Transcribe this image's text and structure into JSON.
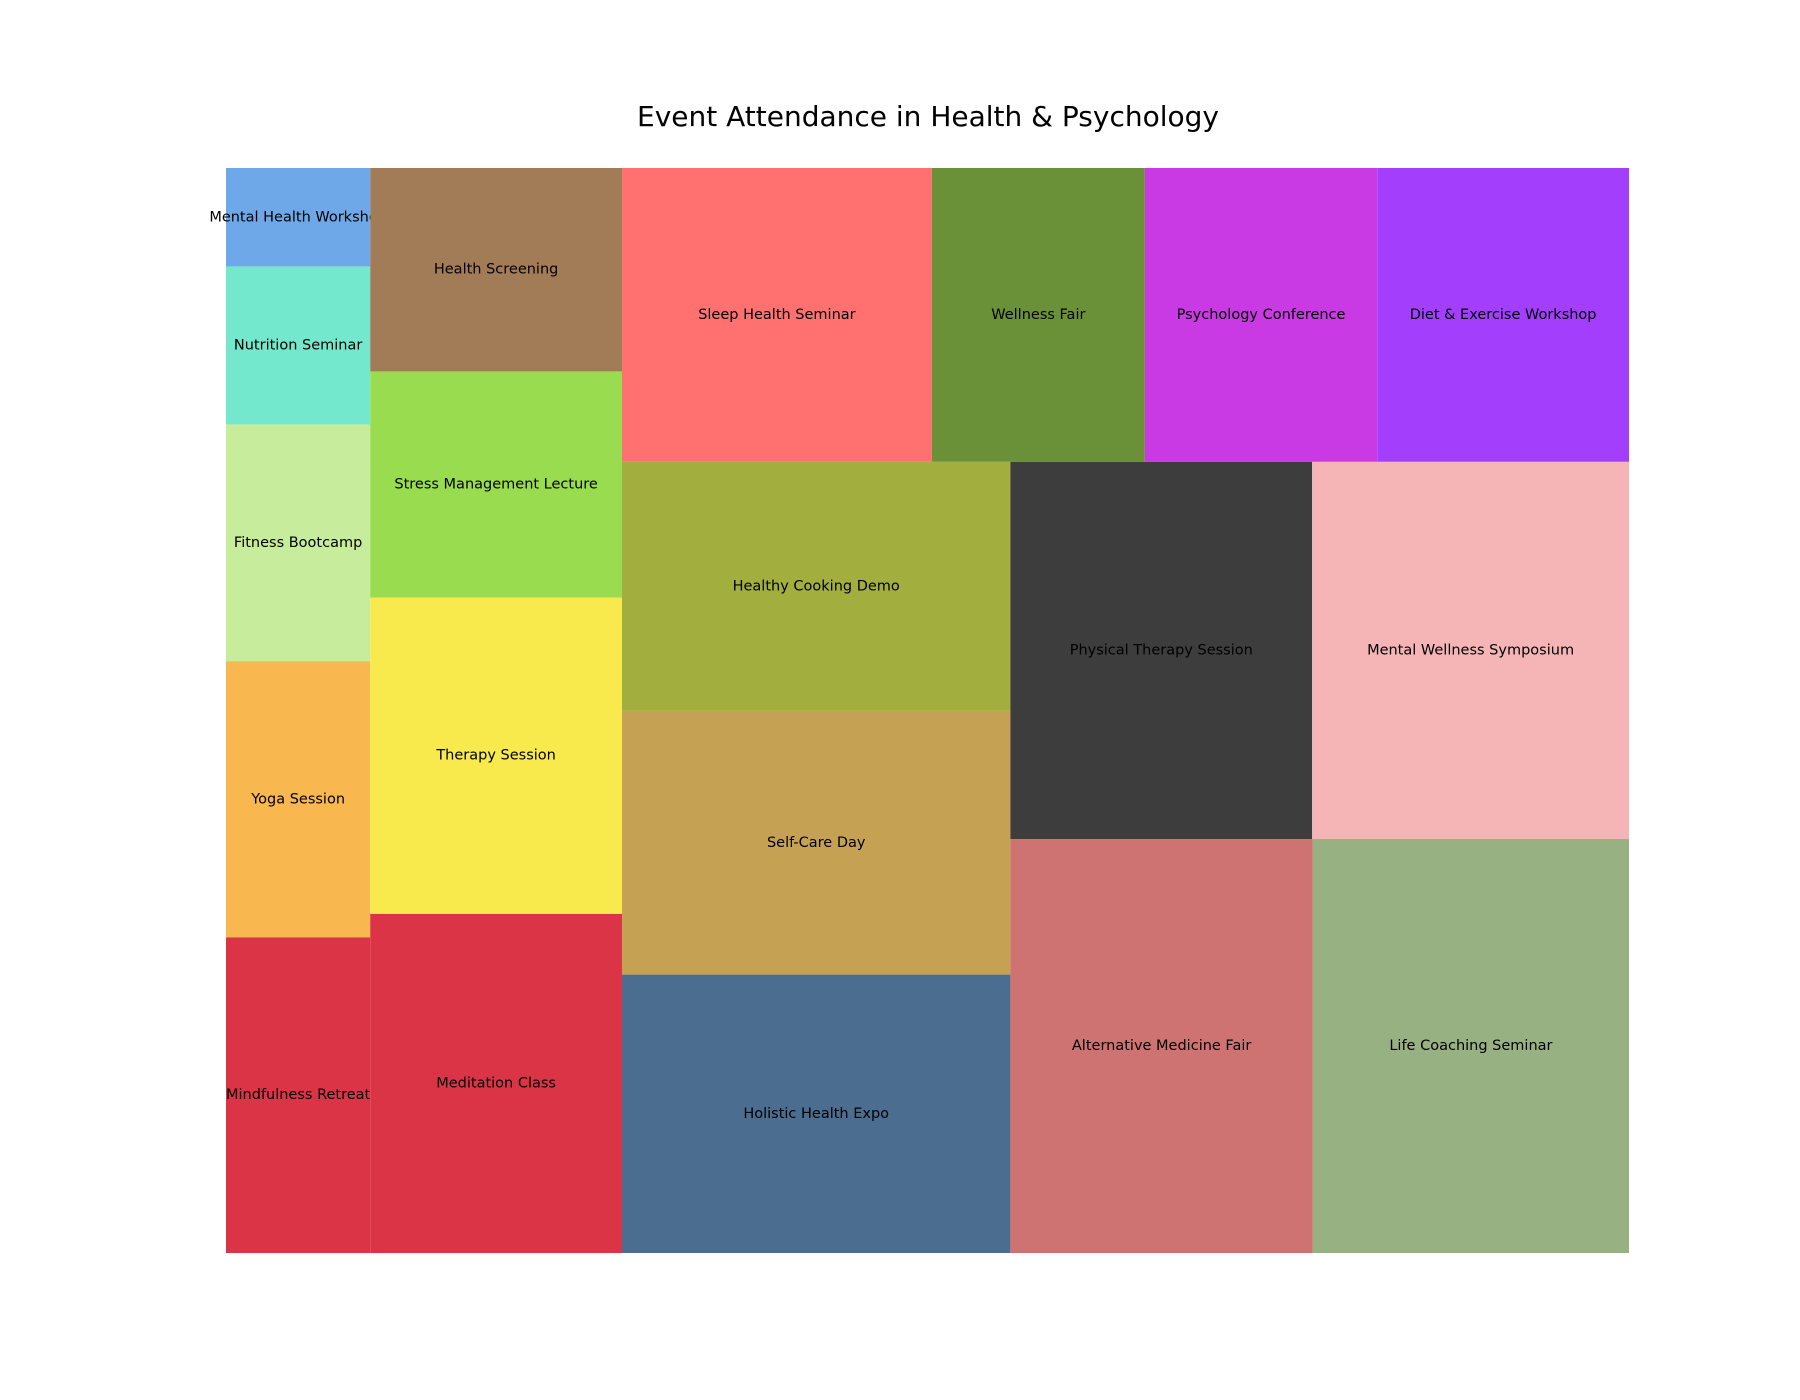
{
  "chart_data": {
    "type": "treemap",
    "title": "Event Attendance in Health & Psychology",
    "legend": "none",
    "grid": false,
    "items": [
      {
        "name": "Mental Health Workshop",
        "value": 150,
        "color": "#6fa8e8"
      },
      {
        "name": "Nutrition Seminar",
        "value": 240,
        "color": "#74e8cc"
      },
      {
        "name": "Fitness Bootcamp",
        "value": 360,
        "color": "#c7ed9c"
      },
      {
        "name": "Yoga Session",
        "value": 420,
        "color": "#f8b74f"
      },
      {
        "name": "Mindfulness Retreat",
        "value": 480,
        "color": "#dc3447"
      },
      {
        "name": "Health Screening",
        "value": 540,
        "color": "#a27b57"
      },
      {
        "name": "Stress Management Lecture",
        "value": 600,
        "color": "#99dc4f"
      },
      {
        "name": "Therapy Session",
        "value": 840,
        "color": "#f8ea4c"
      },
      {
        "name": "Meditation Class",
        "value": 900,
        "color": "#dc3447"
      },
      {
        "name": "Sleep Health Seminar",
        "value": 960,
        "color": "#ff7070"
      },
      {
        "name": "Wellness Fair",
        "value": 660,
        "color": "#6a9038"
      },
      {
        "name": "Psychology Conference",
        "value": 720,
        "color": "#c93ae4"
      },
      {
        "name": "Diet & Exercise Workshop",
        "value": 780,
        "color": "#a33ffc"
      },
      {
        "name": "Healthy Cooking Demo",
        "value": 1020,
        "color": "#a2af3f"
      },
      {
        "name": "Self-Care Day",
        "value": 1080,
        "color": "#c5a253"
      },
      {
        "name": "Holistic Health Expo",
        "value": 1140,
        "color": "#4a6d90"
      },
      {
        "name": "Physical Therapy Session",
        "value": 1200,
        "color": "#3d3d3d"
      },
      {
        "name": "Mental Wellness Symposium",
        "value": 1260,
        "color": "#f5b5b6"
      },
      {
        "name": "Alternative Medicine Fair",
        "value": 1320,
        "color": "#cf7372"
      },
      {
        "name": "Life Coaching Seminar",
        "value": 1380,
        "color": "#98b182"
      }
    ]
  }
}
